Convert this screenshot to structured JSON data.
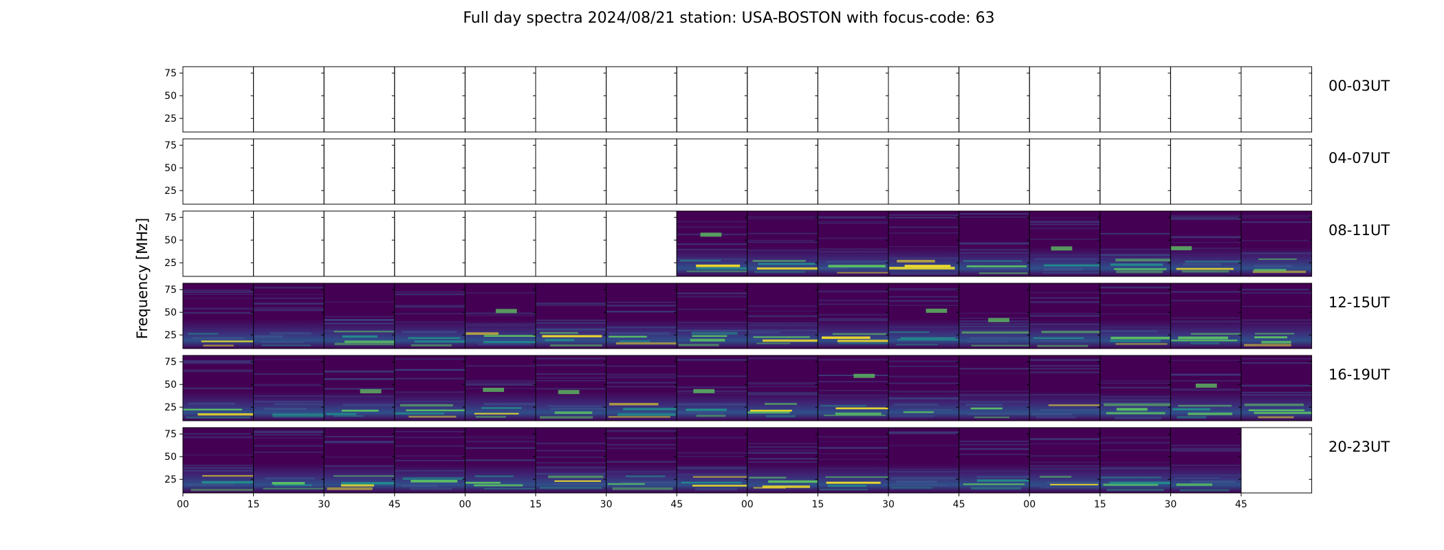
{
  "chart_data": {
    "type": "heatmap",
    "title": "Full day spectra 2024/08/21 station: USA-BOSTON with focus-code: 63",
    "ylabel": "Frequency [MHz]",
    "xlabel": "",
    "yticks": [
      75,
      50,
      25
    ],
    "ylim": [
      10,
      82
    ],
    "xticks": [
      "00",
      "15",
      "30",
      "45",
      "00",
      "15",
      "30",
      "45",
      "00",
      "15",
      "30",
      "45",
      "00",
      "15",
      "30",
      "45"
    ],
    "rows": [
      {
        "label": "00-03UT",
        "panels": [
          0,
          0,
          0,
          0,
          0,
          0,
          0,
          0,
          0,
          0,
          0,
          0,
          0,
          0,
          0,
          0
        ]
      },
      {
        "label": "04-07UT",
        "panels": [
          0,
          0,
          0,
          0,
          0,
          0,
          0,
          0,
          0,
          0,
          0,
          0,
          0,
          0,
          0,
          0
        ]
      },
      {
        "label": "08-11UT",
        "panels": [
          0,
          0,
          0,
          0,
          0,
          0,
          0,
          1,
          1,
          1,
          1,
          1,
          1,
          1,
          1,
          1
        ]
      },
      {
        "label": "12-15UT",
        "panels": [
          1,
          1,
          1,
          1,
          1,
          1,
          1,
          1,
          1,
          1,
          1,
          1,
          1,
          1,
          1,
          1
        ]
      },
      {
        "label": "16-19UT",
        "panels": [
          1,
          1,
          1,
          1,
          1,
          1,
          1,
          1,
          1,
          1,
          1,
          1,
          1,
          1,
          1,
          1
        ]
      },
      {
        "label": "20-23UT",
        "panels": [
          1,
          1,
          1,
          1,
          1,
          1,
          1,
          1,
          1,
          1,
          1,
          1,
          1,
          1,
          1,
          0
        ]
      }
    ],
    "colormap": [
      "#440154",
      "#3b528b",
      "#21918c",
      "#5ec962",
      "#fde725"
    ]
  }
}
